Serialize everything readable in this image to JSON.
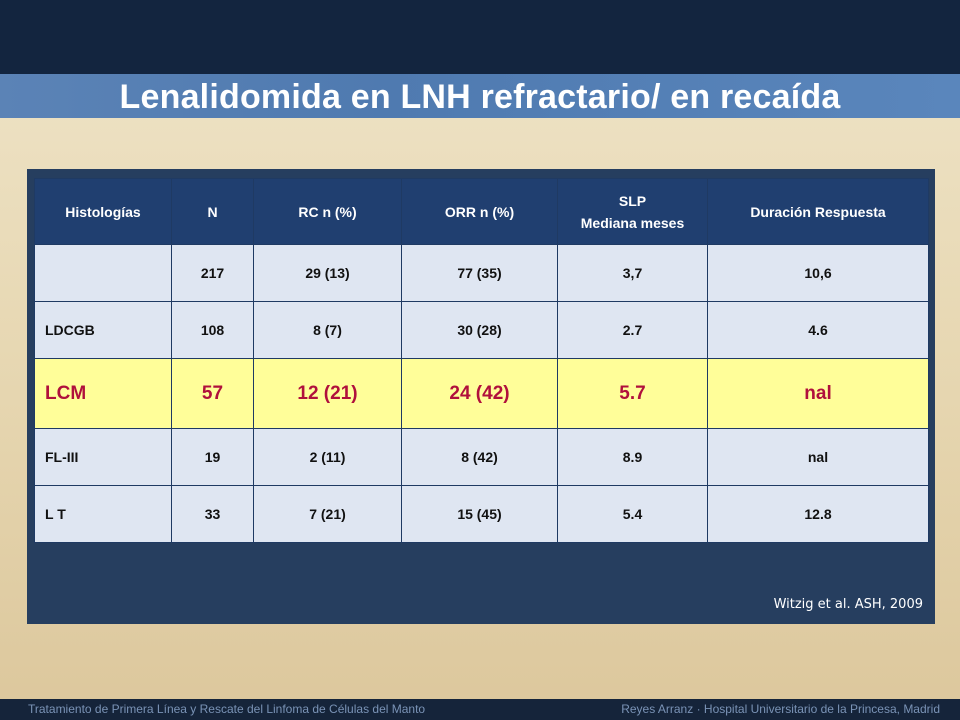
{
  "slide": {
    "title": "Lenalidomida en LNH refractario/ en recaída",
    "citation": "Witzig et al. ASH, 2009"
  },
  "table": {
    "headers": {
      "histologias": "Histologías",
      "n": "N",
      "rc": "RC n (%)",
      "orr": "ORR n (%)",
      "slp_line1": "SLP",
      "slp_line2": "Mediana meses",
      "duracion": "Duración Respuesta"
    },
    "rows": [
      {
        "histologia": "",
        "n": "217",
        "rc": "29 (13)",
        "orr": "77 (35)",
        "slp": "3,7",
        "duracion": "10,6"
      },
      {
        "histologia": "LDCGB",
        "n": "108",
        "rc": "8 (7)",
        "orr": "30 (28)",
        "slp": "2.7",
        "duracion": "4.6"
      },
      {
        "histologia": "LCM",
        "n": "57",
        "rc": "12 (21)",
        "orr": "24 (42)",
        "slp": "5.7",
        "duracion": "nal"
      },
      {
        "histologia": "FL-III",
        "n": "19",
        "rc": "2 (11)",
        "orr": "8 (42)",
        "slp": "8.9",
        "duracion": "nal"
      },
      {
        "histologia": "L T",
        "n": "33",
        "rc": "7 (21)",
        "orr": "15 (45)",
        "slp": "5.4",
        "duracion": "12.8"
      }
    ]
  },
  "footer": {
    "left": "Tratamiento de Primera Línea y Rescate del Linfoma de Células del Manto",
    "right": "Reyes Arranz · Hospital Universitario de la Princesa, Madrid"
  },
  "colors": {
    "header_band": "#13253f",
    "title_bar": "#4f7ab0",
    "panel": "#263e5f",
    "table_header": "#203f70",
    "row_bg": "#dfe6f2",
    "highlight_bg": "#fffe99",
    "highlight_text": "#b0103c"
  }
}
